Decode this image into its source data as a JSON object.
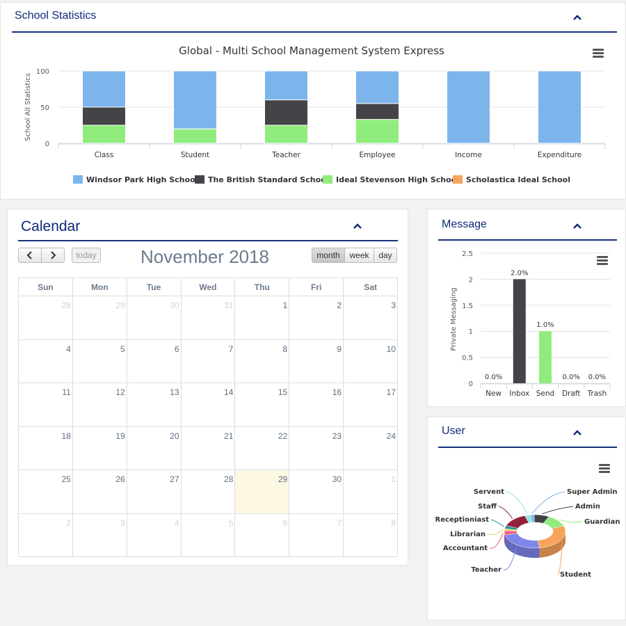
{
  "school_statistics": {
    "title": "School Statistics",
    "chart_data": {
      "type": "bar",
      "stacked": true,
      "title": "Global - Multi School Management System Express",
      "ylabel": "School All Statistics",
      "xlabel": "",
      "categories": [
        "Class",
        "Student",
        "Teacher",
        "Employee",
        "Income",
        "Expenditure"
      ],
      "ylim": [
        0,
        100
      ],
      "yticks": [
        0,
        50,
        100
      ],
      "legend_position": "bottom",
      "series": [
        {
          "name": "Windsor Park High School",
          "color": "#7cb5ec",
          "values": [
            50,
            80,
            40,
            45,
            100,
            100
          ]
        },
        {
          "name": "The British Standard School",
          "color": "#434348",
          "values": [
            25,
            0,
            35,
            22,
            0,
            0
          ]
        },
        {
          "name": "Ideal Stevenson High School",
          "color": "#90ed7d",
          "values": [
            25,
            20,
            25,
            33,
            0,
            0
          ]
        },
        {
          "name": "Scholastica Ideal School",
          "color": "#f7a35c",
          "values": [
            0,
            0,
            0,
            0,
            0,
            0
          ]
        }
      ]
    }
  },
  "calendar": {
    "title": "Calendar",
    "month_title": "November 2018",
    "prev_icon": "chevron-left-icon",
    "next_icon": "chevron-right-icon",
    "today_label": "today",
    "views": [
      "month",
      "week",
      "day"
    ],
    "active_view": "month",
    "day_headers": [
      "Sun",
      "Mon",
      "Tue",
      "Wed",
      "Thu",
      "Fri",
      "Sat"
    ],
    "weeks": [
      [
        {
          "d": "28",
          "o": true
        },
        {
          "d": "29",
          "o": true
        },
        {
          "d": "30",
          "o": true
        },
        {
          "d": "31",
          "o": true
        },
        {
          "d": "1"
        },
        {
          "d": "2"
        },
        {
          "d": "3"
        }
      ],
      [
        {
          "d": "4"
        },
        {
          "d": "5"
        },
        {
          "d": "6"
        },
        {
          "d": "7"
        },
        {
          "d": "8"
        },
        {
          "d": "9"
        },
        {
          "d": "10"
        }
      ],
      [
        {
          "d": "11"
        },
        {
          "d": "12"
        },
        {
          "d": "13"
        },
        {
          "d": "14"
        },
        {
          "d": "15"
        },
        {
          "d": "16"
        },
        {
          "d": "17"
        }
      ],
      [
        {
          "d": "18"
        },
        {
          "d": "19"
        },
        {
          "d": "20"
        },
        {
          "d": "21"
        },
        {
          "d": "22"
        },
        {
          "d": "23"
        },
        {
          "d": "24"
        }
      ],
      [
        {
          "d": "25"
        },
        {
          "d": "26"
        },
        {
          "d": "27"
        },
        {
          "d": "28"
        },
        {
          "d": "29",
          "t": true
        },
        {
          "d": "30"
        },
        {
          "d": "1",
          "o": true
        }
      ],
      [
        {
          "d": "2",
          "o": true
        },
        {
          "d": "3",
          "o": true
        },
        {
          "d": "4",
          "o": true
        },
        {
          "d": "5",
          "o": true
        },
        {
          "d": "6",
          "o": true
        },
        {
          "d": "7",
          "o": true
        },
        {
          "d": "8",
          "o": true
        }
      ]
    ]
  },
  "message": {
    "title": "Message",
    "chart_data": {
      "type": "bar",
      "title": "",
      "ylabel": "Private Messaging",
      "categories": [
        "New",
        "Inbox",
        "Send",
        "Draft",
        "Trash"
      ],
      "values": [
        0,
        2,
        1,
        0,
        0
      ],
      "data_labels": [
        "0.0%",
        "2.0%",
        "1.0%",
        "0.0%",
        "0.0%"
      ],
      "colors": [
        "#7cb5ec",
        "#434348",
        "#90ed7d",
        "#f7a35c",
        "#8085e9"
      ],
      "ylim": [
        0,
        2.5
      ],
      "yticks": [
        "0",
        "0.5",
        "1",
        "1.5",
        "2",
        "2.5"
      ]
    }
  },
  "user": {
    "title": "User",
    "chart_data": {
      "type": "pie",
      "donut": true,
      "three_d": true,
      "slices": [
        {
          "name": "Super Admin",
          "value": 2,
          "color": "#7cb5ec"
        },
        {
          "name": "Admin",
          "value": 8,
          "color": "#434348"
        },
        {
          "name": "Guardian",
          "value": 12,
          "color": "#90ed7d"
        },
        {
          "name": "Student",
          "value": 28,
          "color": "#f7a35c"
        },
        {
          "name": "Teacher",
          "value": 24,
          "color": "#8085e9"
        },
        {
          "name": "Accountant",
          "value": 4,
          "color": "#f15c80"
        },
        {
          "name": "Librarian",
          "value": 2,
          "color": "#e4d354"
        },
        {
          "name": "Receptioniast",
          "value": 3,
          "color": "#2b908f"
        },
        {
          "name": "Staff",
          "value": 14,
          "color": "#91223c"
        },
        {
          "name": "Servent",
          "value": 3,
          "color": "#91e8e1"
        }
      ]
    }
  }
}
